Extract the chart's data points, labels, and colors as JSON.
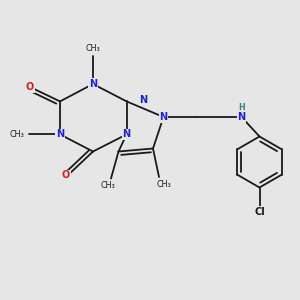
{
  "background_color": "#e6e6e6",
  "bond_color": "#1a1a1a",
  "N_color": "#2020cc",
  "O_color": "#cc2020",
  "H_color": "#3a8080",
  "Cl_color": "#1a1a1a",
  "figsize": [
    3.0,
    3.0
  ],
  "dpi": 100,
  "xlim": [
    0,
    10
  ],
  "ylim": [
    0,
    10
  ]
}
